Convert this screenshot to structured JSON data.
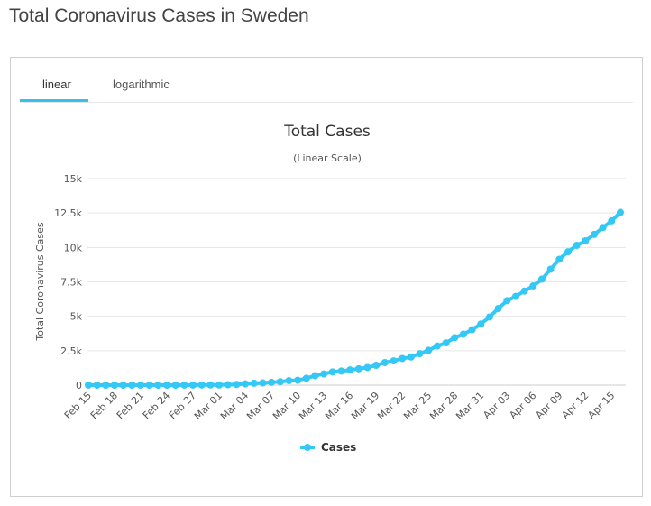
{
  "page": {
    "title": "Total Coronavirus Cases in Sweden"
  },
  "tabs": [
    {
      "label": "linear",
      "active": true
    },
    {
      "label": "logarithmic",
      "active": false
    }
  ],
  "colors": {
    "series": "#33c8f5",
    "tab_accent": "#33c2ee"
  },
  "chart_data": {
    "type": "line",
    "title": "Total Cases",
    "subtitle": "(Linear Scale)",
    "ylabel": "Total Coronavirus Cases",
    "xlabel": "",
    "ylim": [
      0,
      15000
    ],
    "y_ticks": [
      0,
      2500,
      5000,
      7500,
      10000,
      12500,
      15000
    ],
    "y_tick_labels": [
      "0",
      "2.5k",
      "5k",
      "7.5k",
      "10k",
      "12.5k",
      "15k"
    ],
    "x_tick_labels": [
      "Feb 15",
      "Feb 18",
      "Feb 21",
      "Feb 24",
      "Feb 27",
      "Mar 01",
      "Mar 04",
      "Mar 07",
      "Mar 10",
      "Mar 13",
      "Mar 16",
      "Mar 19",
      "Mar 22",
      "Mar 25",
      "Mar 28",
      "Mar 31",
      "Apr 03",
      "Apr 06",
      "Apr 09",
      "Apr 12",
      "Apr 15"
    ],
    "grid": true,
    "legend": "bottom-center",
    "categories": [
      "Feb 15",
      "Feb 16",
      "Feb 17",
      "Feb 18",
      "Feb 19",
      "Feb 20",
      "Feb 21",
      "Feb 22",
      "Feb 23",
      "Feb 24",
      "Feb 25",
      "Feb 26",
      "Feb 27",
      "Feb 28",
      "Feb 29",
      "Mar 01",
      "Mar 02",
      "Mar 03",
      "Mar 04",
      "Mar 05",
      "Mar 06",
      "Mar 07",
      "Mar 08",
      "Mar 09",
      "Mar 10",
      "Mar 11",
      "Mar 12",
      "Mar 13",
      "Mar 14",
      "Mar 15",
      "Mar 16",
      "Mar 17",
      "Mar 18",
      "Mar 19",
      "Mar 20",
      "Mar 21",
      "Mar 22",
      "Mar 23",
      "Mar 24",
      "Mar 25",
      "Mar 26",
      "Mar 27",
      "Mar 28",
      "Mar 29",
      "Mar 30",
      "Mar 31",
      "Apr 01",
      "Apr 02",
      "Apr 03",
      "Apr 04",
      "Apr 05",
      "Apr 06",
      "Apr 07",
      "Apr 08",
      "Apr 09",
      "Apr 10",
      "Apr 11",
      "Apr 12",
      "Apr 13",
      "Apr 14",
      "Apr 15",
      "Apr 16"
    ],
    "series": [
      {
        "name": "Cases",
        "values": [
          1,
          1,
          1,
          1,
          1,
          1,
          1,
          1,
          1,
          1,
          1,
          2,
          7,
          12,
          14,
          15,
          30,
          52,
          94,
          137,
          161,
          203,
          248,
          326,
          355,
          500,
          687,
          814,
          961,
          1022,
          1103,
          1190,
          1279,
          1439,
          1639,
          1763,
          1934,
          2046,
          2286,
          2526,
          2840,
          3069,
          3447,
          3700,
          4028,
          4435,
          4947,
          5568,
          6131,
          6443,
          6830,
          7206,
          7693,
          8419,
          9141,
          9685,
          10151,
          10483,
          10948,
          11445,
          11927,
          12540
        ]
      }
    ]
  }
}
